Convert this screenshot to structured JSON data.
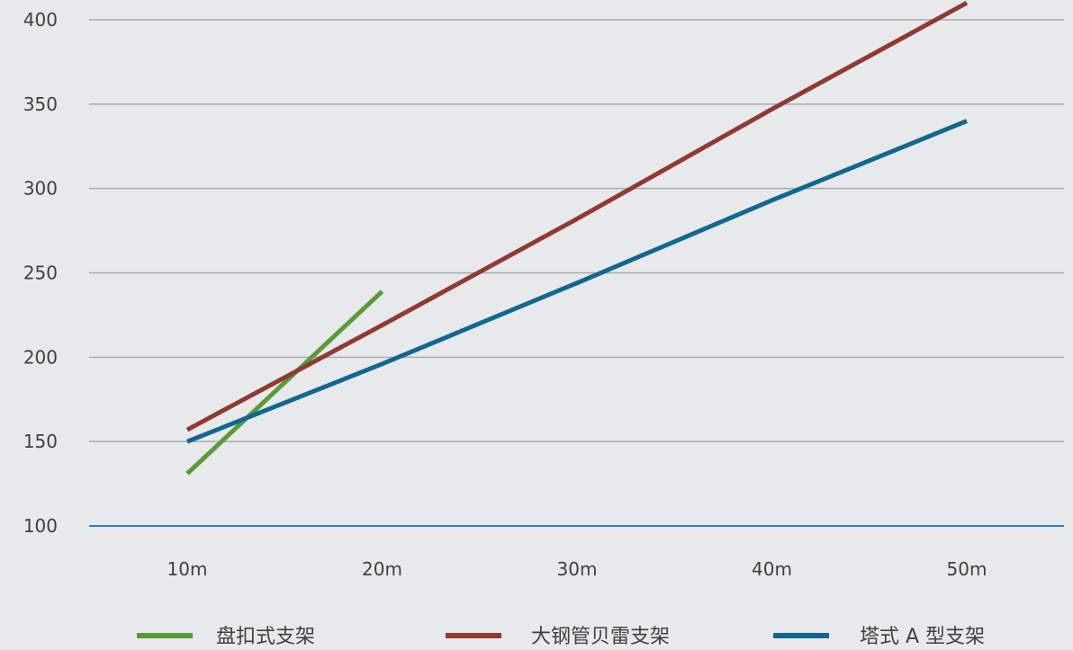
{
  "chart_data": {
    "type": "line",
    "title": "",
    "xlabel": "",
    "ylabel": "",
    "categories": [
      "10m",
      "20m",
      "30m",
      "40m",
      "50m"
    ],
    "ylim": [
      100,
      400
    ],
    "yticks": [
      100,
      150,
      200,
      250,
      300,
      350,
      400
    ],
    "grid": true,
    "legend_position": "bottom",
    "series": [
      {
        "name": "盘扣式支架",
        "color": "#5a9a3c",
        "values": [
          131,
          239,
          null,
          null,
          null
        ]
      },
      {
        "name": "大钢管贝雷支架",
        "color": "#8f3a34",
        "values": [
          157,
          219,
          282,
          347,
          410
        ]
      },
      {
        "name": "塔式 A 型支架",
        "color": "#11688f",
        "values": [
          150,
          196,
          244,
          293,
          340
        ]
      }
    ],
    "colors": {
      "grid": "#a9aaac",
      "baseline": "#2f7fbf",
      "background": "#e8e9eb",
      "text": "#404040"
    }
  }
}
